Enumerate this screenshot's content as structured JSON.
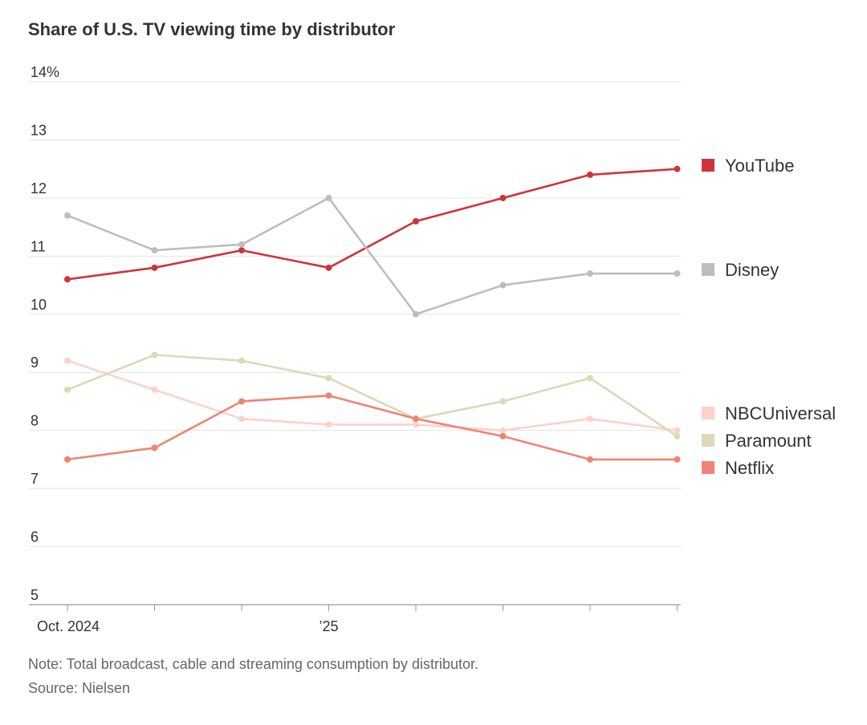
{
  "chart_data": {
    "type": "line",
    "title": "Share of U.S. TV viewing time by distributor",
    "y_unit": "%",
    "ylim": [
      5,
      14
    ],
    "yticks": [
      5,
      6,
      7,
      8,
      9,
      10,
      11,
      12,
      13,
      14
    ],
    "ytick_labels": [
      "5",
      "6",
      "7",
      "8",
      "9",
      "10",
      "11",
      "12",
      "13",
      "14%"
    ],
    "x": [
      "2024-10",
      "2024-11",
      "2024-12",
      "2025-01",
      "2025-02",
      "2025-03",
      "2025-04",
      "2025-05"
    ],
    "xtick_labels": [
      {
        "x": "2024-10",
        "label": "Oct. 2024"
      },
      {
        "x": "2025-01",
        "label": "’25"
      }
    ],
    "grid": true,
    "legend": "right, at line ends",
    "series": [
      {
        "name": "YouTube",
        "color": "#d0333b",
        "values": [
          10.6,
          10.8,
          11.1,
          10.8,
          11.6,
          12.0,
          12.4,
          12.5
        ]
      },
      {
        "name": "Disney",
        "color": "#bdbdbd",
        "values": [
          11.7,
          11.1,
          11.2,
          12.0,
          10.0,
          10.5,
          10.7,
          10.7
        ]
      },
      {
        "name": "NBCUniversal",
        "color": "#fbd3c8",
        "values": [
          9.2,
          8.7,
          8.2,
          8.1,
          8.1,
          8.0,
          8.2,
          8.0
        ]
      },
      {
        "name": "Paramount",
        "color": "#dcd8b8",
        "values": [
          8.7,
          9.3,
          9.2,
          8.9,
          8.2,
          8.5,
          8.9,
          7.9
        ]
      },
      {
        "name": "Netflix",
        "color": "#f08373",
        "values": [
          7.5,
          7.7,
          8.5,
          8.6,
          8.2,
          7.9,
          7.5,
          7.5
        ]
      }
    ],
    "note": "Note: Total broadcast, cable and streaming consumption by distributor.",
    "source": "Source: Nielsen"
  }
}
